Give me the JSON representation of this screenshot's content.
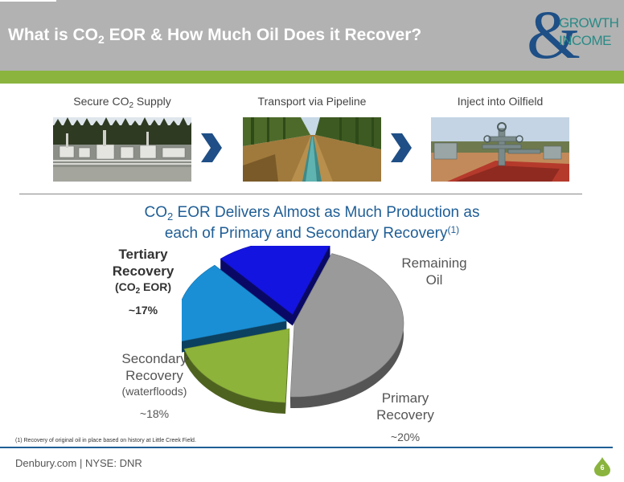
{
  "header": {
    "title_part1": "What is CO",
    "title_sub": "2",
    "title_part2": " EOR & How Much Oil Does it Recover?"
  },
  "logo": {
    "symbol": "&",
    "word1": "GROWTH",
    "word2": "INCOME",
    "color_amp": "#1e4f86",
    "color_text": "#2a8a86"
  },
  "steps": [
    {
      "label_part1": "Secure CO",
      "label_sub": "2",
      "label_part2": " Supply"
    },
    {
      "label": "Transport via Pipeline"
    },
    {
      "label": "Inject into Oilfield"
    }
  ],
  "subtitle": {
    "line1_part1": "CO",
    "line1_sub": "2",
    "line1_part2": " EOR Delivers Almost as Much Production as",
    "line2": "each of Primary and Secondary Recovery",
    "line2_sup": "(1)"
  },
  "chart_data": {
    "type": "pie",
    "slices": [
      {
        "name": "Tertiary Recovery (CO2 EOR)",
        "value": 17,
        "label": "~17%",
        "color": "#1414e0"
      },
      {
        "name": "Remaining Oil",
        "value": 45,
        "label": "",
        "color": "#9a9a9a"
      },
      {
        "name": "Primary Recovery",
        "value": 20,
        "label": "~20%",
        "color": "#8db33a"
      },
      {
        "name": "Secondary Recovery (waterfloods)",
        "value": 18,
        "label": "~18%",
        "color": "#1a8fd6"
      }
    ]
  },
  "labels": {
    "tertiary_line1": "Tertiary",
    "tertiary_line2": "Recovery",
    "tertiary_sub_part1": "(CO",
    "tertiary_sub_sub": "2",
    "tertiary_sub_part2": " EOR)",
    "tertiary_pct": "~17%",
    "remaining_line1": "Remaining",
    "remaining_line2": "Oil",
    "secondary_line1": "Secondary",
    "secondary_line2": "Recovery",
    "secondary_sub": "(waterfloods)",
    "secondary_pct": "~18%",
    "primary_line1": "Primary",
    "primary_line2": "Recovery",
    "primary_pct": "~20%"
  },
  "footnote": "(1) Recovery of original oil in place based on history at Little Creek Field.",
  "footer": {
    "text": "Denbury.com | NYSE: DNR",
    "page_number": "6"
  },
  "colors": {
    "header_bg": "#b2b2b2",
    "accent_green": "#8ab43e",
    "title_blue": "#1f5e96",
    "chevron_blue": "#1f4f86"
  }
}
